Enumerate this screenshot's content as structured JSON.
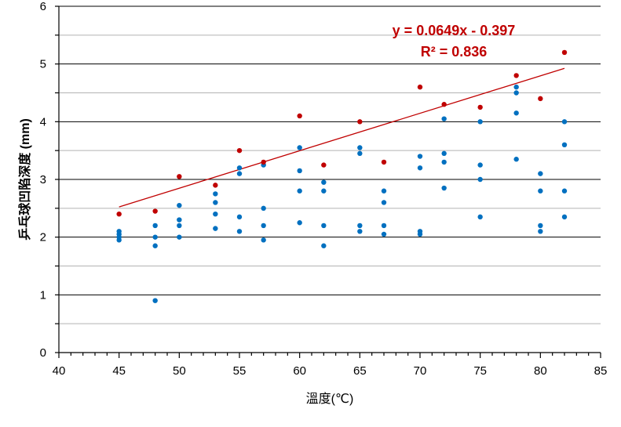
{
  "chart_data": {
    "type": "scatter",
    "title": "",
    "xlabel": "溫度(℃)",
    "ylabel": "乒乓球凹陷深度 (mm)",
    "xlim": [
      40,
      85
    ],
    "ylim": [
      0,
      6
    ],
    "x_ticks": [
      "40",
      "45",
      "50",
      "55",
      "60",
      "65",
      "70",
      "75",
      "80",
      "85"
    ],
    "y_ticks": [
      "0",
      "1",
      "2",
      "3",
      "4",
      "5",
      "6"
    ],
    "grid": true,
    "legend": "none",
    "series": [
      {
        "color": "#0070c0",
        "points": [
          [
            45,
            2.1
          ],
          [
            45,
            2.05
          ],
          [
            45,
            2.0
          ],
          [
            45,
            1.95
          ],
          [
            48,
            2.2
          ],
          [
            48,
            2.0
          ],
          [
            48,
            1.85
          ],
          [
            48,
            0.9
          ],
          [
            50,
            2.55
          ],
          [
            50,
            2.3
          ],
          [
            50,
            2.2
          ],
          [
            50,
            2.0
          ],
          [
            53,
            2.75
          ],
          [
            53,
            2.6
          ],
          [
            53,
            2.4
          ],
          [
            53,
            2.15
          ],
          [
            55,
            3.2
          ],
          [
            55,
            3.1
          ],
          [
            55,
            2.35
          ],
          [
            55,
            2.1
          ],
          [
            57,
            3.25
          ],
          [
            57,
            2.5
          ],
          [
            57,
            2.2
          ],
          [
            57,
            1.95
          ],
          [
            60,
            3.55
          ],
          [
            60,
            3.15
          ],
          [
            60,
            2.8
          ],
          [
            60,
            2.25
          ],
          [
            62,
            2.95
          ],
          [
            62,
            2.8
          ],
          [
            62,
            2.2
          ],
          [
            62,
            1.85
          ],
          [
            65,
            3.55
          ],
          [
            65,
            3.45
          ],
          [
            65,
            2.2
          ],
          [
            65,
            2.1
          ],
          [
            67,
            2.8
          ],
          [
            67,
            2.6
          ],
          [
            67,
            2.2
          ],
          [
            67,
            2.05
          ],
          [
            70,
            3.4
          ],
          [
            70,
            3.2
          ],
          [
            70,
            2.1
          ],
          [
            70,
            2.05
          ],
          [
            72,
            4.05
          ],
          [
            72,
            3.45
          ],
          [
            72,
            3.3
          ],
          [
            72,
            2.85
          ],
          [
            75,
            4.0
          ],
          [
            75,
            3.25
          ],
          [
            75,
            3.0
          ],
          [
            75,
            2.35
          ],
          [
            78,
            4.6
          ],
          [
            78,
            4.5
          ],
          [
            78,
            4.15
          ],
          [
            78,
            3.35
          ],
          [
            80,
            3.1
          ],
          [
            80,
            2.8
          ],
          [
            80,
            2.2
          ],
          [
            80,
            2.1
          ],
          [
            82,
            4.0
          ],
          [
            82,
            3.6
          ],
          [
            82,
            2.8
          ],
          [
            82,
            2.35
          ]
        ]
      },
      {
        "color": "#c00000",
        "points": [
          [
            45,
            2.4
          ],
          [
            48,
            2.45
          ],
          [
            50,
            3.05
          ],
          [
            53,
            2.9
          ],
          [
            55,
            3.5
          ],
          [
            57,
            3.3
          ],
          [
            60,
            4.1
          ],
          [
            62,
            3.25
          ],
          [
            65,
            4.0
          ],
          [
            67,
            3.3
          ],
          [
            70,
            4.6
          ],
          [
            72,
            4.3
          ],
          [
            75,
            4.25
          ],
          [
            78,
            4.8
          ],
          [
            80,
            4.4
          ],
          [
            82,
            5.2
          ]
        ]
      }
    ],
    "trendline": {
      "color": "#c00000",
      "slope": 0.0649,
      "intercept": -0.397,
      "x_range": [
        45,
        82
      ]
    },
    "annotations": {
      "equation": "y = 0.0649x - 0.397",
      "r_squared": "R² = 0.836"
    }
  }
}
